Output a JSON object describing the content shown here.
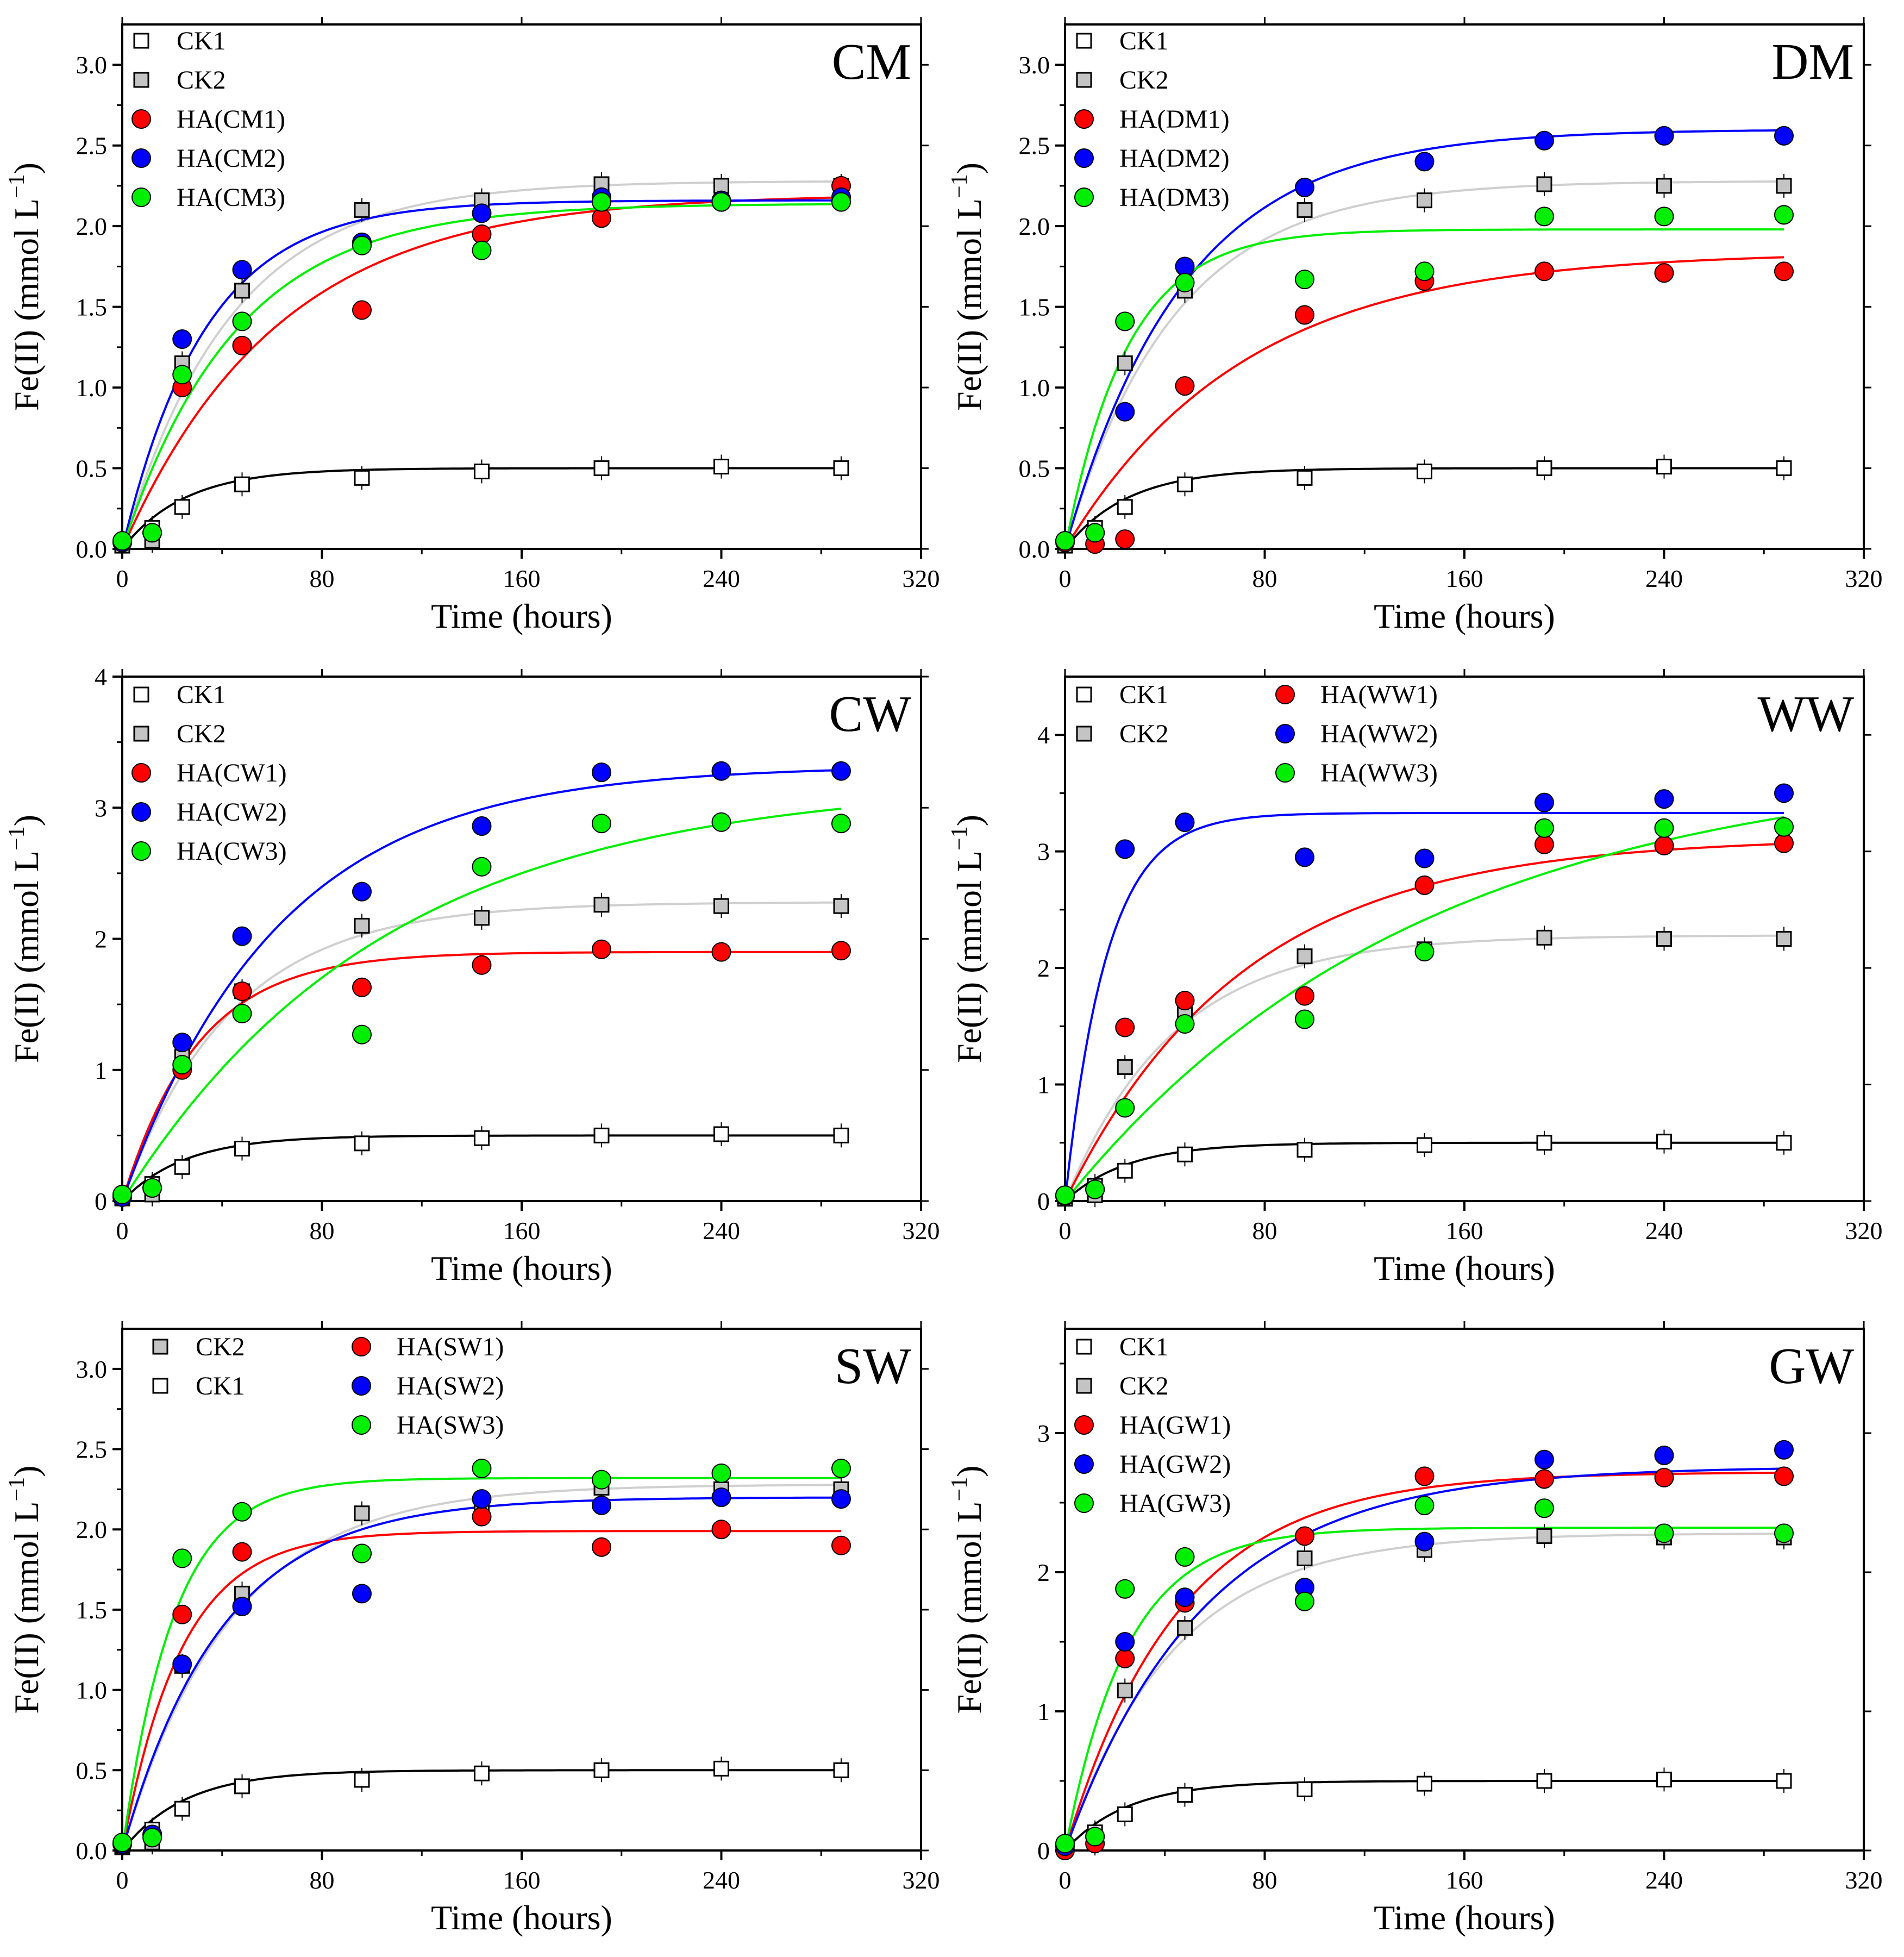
{
  "x_label": "Time (hours)",
  "y_label_main": "Fe(II) (mmol L",
  "y_label_sup": "−1",
  "y_label_close": ")",
  "colors": {
    "CK1": "#ffffff",
    "CK2": "#c4c4c4",
    "CK2_fit": "#cfcfcf",
    "CK1_fit": "#000000",
    "red": "#ff0000",
    "blue": "#0000ff",
    "green": "#00ee00"
  },
  "chart_data": [
    {
      "type": "scatter",
      "title": "CM",
      "xlabel": "Time (hours)",
      "ylabel": "Fe(II) (mmol L−1)",
      "xlim": [
        0,
        320
      ],
      "ylim": [
        0,
        3.25
      ],
      "xticks": [
        0,
        80,
        160,
        240,
        320
      ],
      "xtick_labels": [
        "0",
        "80",
        "160",
        "240",
        "320"
      ],
      "yticks": [
        0,
        0.5,
        1,
        1.5,
        2,
        2.5,
        3
      ],
      "ytick_labels": [
        "0.0",
        "0.5",
        "1.0",
        "1.5",
        "2.0",
        "2.5",
        "3.0"
      ],
      "x": [
        0,
        12,
        24,
        48,
        96,
        144,
        192,
        240,
        288
      ],
      "series": [
        {
          "name": "CK1",
          "values": [
            0.03,
            0.13,
            0.26,
            0.4,
            0.44,
            0.48,
            0.5,
            0.51,
            0.5
          ],
          "fit_A": 0.5,
          "fit_k": 0.04
        },
        {
          "name": "CK2",
          "values": [
            0.02,
            0.05,
            1.15,
            1.6,
            2.1,
            2.16,
            2.26,
            2.25,
            2.25
          ],
          "fit_A": 2.28,
          "fit_k": 0.023
        },
        {
          "name": "HA(CM1)",
          "values": [
            0.04,
            0.1,
            1.0,
            1.26,
            1.48,
            1.95,
            2.05,
            2.15,
            2.25
          ],
          "fit_A": 2.2,
          "fit_k": 0.016
        },
        {
          "name": "HA(CM2)",
          "values": [
            0.04,
            0.1,
            1.3,
            1.73,
            1.9,
            2.08,
            2.18,
            2.16,
            2.18
          ],
          "fit_A": 2.16,
          "fit_k": 0.03
        },
        {
          "name": "HA(CM3)",
          "values": [
            0.05,
            0.1,
            1.08,
            1.41,
            1.88,
            1.85,
            2.15,
            2.15,
            2.15
          ],
          "fit_A": 2.14,
          "fit_k": 0.022
        }
      ],
      "legend": [
        "CK1",
        "CK2",
        "HA(CM1)",
        "HA(CM2)",
        "HA(CM3)"
      ]
    },
    {
      "type": "scatter",
      "title": "DM",
      "xlabel": "Time (hours)",
      "ylabel": "Fe(II) (mmol L−1)",
      "xlim": [
        0,
        320
      ],
      "ylim": [
        0,
        3.25
      ],
      "xticks": [
        0,
        80,
        160,
        240,
        320
      ],
      "xtick_labels": [
        "0",
        "80",
        "160",
        "240",
        "320"
      ],
      "yticks": [
        0,
        0.5,
        1,
        1.5,
        2,
        2.5,
        3
      ],
      "ytick_labels": [
        "0.0",
        "0.5",
        "1.0",
        "1.5",
        "2.0",
        "2.5",
        "3.0"
      ],
      "x": [
        0,
        12,
        24,
        48,
        96,
        144,
        192,
        240,
        288
      ],
      "series": [
        {
          "name": "CK1",
          "values": [
            0.03,
            0.13,
            0.26,
            0.4,
            0.44,
            0.48,
            0.5,
            0.51,
            0.5
          ],
          "fit_A": 0.5,
          "fit_k": 0.04
        },
        {
          "name": "CK2",
          "values": [
            0.02,
            0.05,
            1.15,
            1.6,
            2.1,
            2.16,
            2.26,
            2.25,
            2.25
          ],
          "fit_A": 2.28,
          "fit_k": 0.023
        },
        {
          "name": "HA(DM1)",
          "values": [
            0.04,
            0.03,
            0.06,
            1.01,
            1.45,
            1.66,
            1.72,
            1.71,
            1.72
          ],
          "fit_A": 1.84,
          "fit_k": 0.014
        },
        {
          "name": "HA(DM2)",
          "values": [
            0.05,
            0.1,
            0.85,
            1.75,
            2.24,
            2.4,
            2.53,
            2.56,
            2.56
          ],
          "fit_A": 2.6,
          "fit_k": 0.021
        },
        {
          "name": "HA(DM3)",
          "values": [
            0.05,
            0.1,
            1.41,
            1.65,
            1.67,
            1.72,
            2.06,
            2.06,
            2.07
          ],
          "fit_A": 1.98,
          "fit_k": 0.04
        }
      ],
      "legend": [
        "CK1",
        "CK2",
        "HA(DM1)",
        "HA(DM2)",
        "HA(DM3)"
      ]
    },
    {
      "type": "scatter",
      "title": "CW",
      "xlabel": "Time (hours)",
      "ylabel": "Fe(II) (mmol L−1)",
      "xlim": [
        0,
        320
      ],
      "ylim": [
        0,
        4
      ],
      "xticks": [
        0,
        80,
        160,
        240,
        320
      ],
      "xtick_labels": [
        "0",
        "80",
        "160",
        "240",
        "320"
      ],
      "yticks": [
        0,
        1,
        2,
        3,
        4
      ],
      "ytick_labels": [
        "0",
        "1",
        "2",
        "3",
        "4"
      ],
      "x": [
        0,
        12,
        24,
        48,
        96,
        144,
        192,
        240,
        288
      ],
      "series": [
        {
          "name": "CK1",
          "values": [
            0.03,
            0.13,
            0.26,
            0.4,
            0.44,
            0.48,
            0.5,
            0.51,
            0.5
          ],
          "fit_A": 0.5,
          "fit_k": 0.04
        },
        {
          "name": "CK2",
          "values": [
            0.02,
            0.05,
            1.1,
            1.6,
            2.1,
            2.16,
            2.26,
            2.25,
            2.25
          ],
          "fit_A": 2.28,
          "fit_k": 0.023
        },
        {
          "name": "HA(CW1)",
          "values": [
            0.04,
            0.1,
            1.0,
            1.6,
            1.63,
            1.8,
            1.92,
            1.9,
            1.91
          ],
          "fit_A": 1.9,
          "fit_k": 0.033
        },
        {
          "name": "HA(CW2)",
          "values": [
            0.03,
            0.1,
            1.21,
            2.02,
            2.36,
            2.86,
            3.27,
            3.28,
            3.28
          ],
          "fit_A": 3.32,
          "fit_k": 0.016
        },
        {
          "name": "HA(CW3)",
          "values": [
            0.05,
            0.1,
            1.04,
            1.43,
            1.27,
            2.55,
            2.88,
            2.89,
            2.88
          ],
          "fit_A": 3.2,
          "fit_k": 0.0095
        }
      ],
      "legend": [
        "CK1",
        "CK2",
        "HA(CW1)",
        "HA(CW2)",
        "HA(CW3)"
      ]
    },
    {
      "type": "scatter",
      "title": "WW",
      "xlabel": "Time (hours)",
      "ylabel": "Fe(II) (mmol L−1)",
      "xlim": [
        0,
        320
      ],
      "ylim": [
        0,
        4.5
      ],
      "xticks": [
        0,
        80,
        160,
        240,
        320
      ],
      "xtick_labels": [
        "0",
        "80",
        "160",
        "240",
        "320"
      ],
      "yticks": [
        0,
        1,
        2,
        3,
        4
      ],
      "ytick_labels": [
        "0",
        "1",
        "2",
        "3",
        "4"
      ],
      "x": [
        0,
        12,
        24,
        48,
        96,
        144,
        192,
        240,
        288
      ],
      "series": [
        {
          "name": "CK1",
          "values": [
            0.03,
            0.13,
            0.26,
            0.4,
            0.44,
            0.48,
            0.5,
            0.51,
            0.5
          ],
          "fit_A": 0.5,
          "fit_k": 0.04
        },
        {
          "name": "CK2",
          "values": [
            0.02,
            0.05,
            1.15,
            1.6,
            2.1,
            2.16,
            2.26,
            2.25,
            2.25
          ],
          "fit_A": 2.28,
          "fit_k": 0.023
        },
        {
          "name": "HA(WW1)",
          "values": [
            0.04,
            0.1,
            1.49,
            1.72,
            1.76,
            2.71,
            3.06,
            3.05,
            3.07
          ],
          "fit_A": 3.12,
          "fit_k": 0.014
        },
        {
          "name": "HA(WW2)",
          "values": [
            0.05,
            0.1,
            3.02,
            3.25,
            2.95,
            2.94,
            3.42,
            3.45,
            3.5
          ],
          "fit_A": 3.33,
          "fit_k": 0.06
        },
        {
          "name": "HA(WW3)",
          "values": [
            0.05,
            0.1,
            0.8,
            1.52,
            1.56,
            2.14,
            3.2,
            3.2,
            3.21
          ],
          "fit_A": 3.8,
          "fit_k": 0.007
        }
      ],
      "legend": [
        "CK1",
        "CK2",
        "HA(WW1)",
        "HA(WW2)",
        "HA(WW3)"
      ]
    },
    {
      "type": "scatter",
      "title": "SW",
      "xlabel": "Time (hours)",
      "ylabel": "Fe(II) (mmol L−1)",
      "xlim": [
        0,
        320
      ],
      "ylim": [
        0,
        3.25
      ],
      "xticks": [
        0,
        80,
        160,
        240,
        320
      ],
      "xtick_labels": [
        "0",
        "80",
        "160",
        "240",
        "320"
      ],
      "yticks": [
        0,
        0.5,
        1,
        1.5,
        2,
        2.5,
        3
      ],
      "ytick_labels": [
        "0.0",
        "0.5",
        "1.0",
        "1.5",
        "2.0",
        "2.5",
        "3.0"
      ],
      "x": [
        0,
        12,
        24,
        48,
        96,
        144,
        192,
        240,
        288
      ],
      "series": [
        {
          "name": "CK2",
          "values": [
            0.02,
            0.05,
            1.15,
            1.6,
            2.1,
            2.16,
            2.26,
            2.25,
            2.25
          ],
          "fit_A": 2.28,
          "fit_k": 0.023
        },
        {
          "name": "CK1",
          "values": [
            0.03,
            0.13,
            0.26,
            0.4,
            0.44,
            0.48,
            0.5,
            0.51,
            0.5
          ],
          "fit_A": 0.5,
          "fit_k": 0.04
        },
        {
          "name": "HA(SW1)",
          "values": [
            0.04,
            0.1,
            1.47,
            1.86,
            1.85,
            2.08,
            1.89,
            2.0,
            1.9
          ],
          "fit_A": 1.99,
          "fit_k": 0.042
        },
        {
          "name": "HA(SW2)",
          "values": [
            0.04,
            0.1,
            1.16,
            1.52,
            1.6,
            2.19,
            2.15,
            2.2,
            2.19
          ],
          "fit_A": 2.2,
          "fit_k": 0.025
        },
        {
          "name": "HA(SW3)",
          "values": [
            0.05,
            0.08,
            1.82,
            2.11,
            1.85,
            2.38,
            2.31,
            2.35,
            2.38
          ],
          "fit_A": 2.32,
          "fit_k": 0.048
        }
      ],
      "legend": [
        "CK2",
        "CK1",
        "HA(SW1)",
        "HA(SW2)",
        "HA(SW3)"
      ]
    },
    {
      "type": "scatter",
      "title": "GW",
      "xlabel": "Time (hours)",
      "ylabel": "Fe(II) (mmol L−1)",
      "xlim": [
        0,
        320
      ],
      "ylim": [
        0,
        3.75
      ],
      "xticks": [
        0,
        80,
        160,
        240,
        320
      ],
      "xtick_labels": [
        "0",
        "80",
        "160",
        "240",
        "320"
      ],
      "yticks": [
        0,
        1,
        2,
        3
      ],
      "ytick_labels": [
        "0",
        "1",
        "2",
        "3"
      ],
      "x": [
        0,
        12,
        24,
        48,
        96,
        144,
        192,
        240,
        288
      ],
      "series": [
        {
          "name": "CK1",
          "values": [
            0.03,
            0.13,
            0.26,
            0.4,
            0.44,
            0.48,
            0.5,
            0.51,
            0.5
          ],
          "fit_A": 0.5,
          "fit_k": 0.04
        },
        {
          "name": "CK2",
          "values": [
            0.02,
            0.05,
            1.15,
            1.6,
            2.1,
            2.16,
            2.26,
            2.25,
            2.25
          ],
          "fit_A": 2.28,
          "fit_k": 0.023
        },
        {
          "name": "HA(GW1)",
          "values": [
            0.0,
            0.05,
            1.38,
            1.78,
            2.26,
            2.69,
            2.67,
            2.68,
            2.69
          ],
          "fit_A": 2.72,
          "fit_k": 0.022
        },
        {
          "name": "HA(GW2)",
          "values": [
            0.03,
            0.1,
            1.5,
            1.82,
            1.89,
            2.22,
            2.81,
            2.84,
            2.88
          ],
          "fit_A": 2.76,
          "fit_k": 0.018
        },
        {
          "name": "HA(GW3)",
          "values": [
            0.05,
            0.1,
            1.88,
            2.11,
            1.79,
            2.48,
            2.46,
            2.28,
            2.28
          ],
          "fit_A": 2.32,
          "fit_k": 0.04
        }
      ],
      "legend": [
        "CK1",
        "CK2",
        "HA(GW1)",
        "HA(GW2)",
        "HA(GW3)"
      ]
    }
  ]
}
